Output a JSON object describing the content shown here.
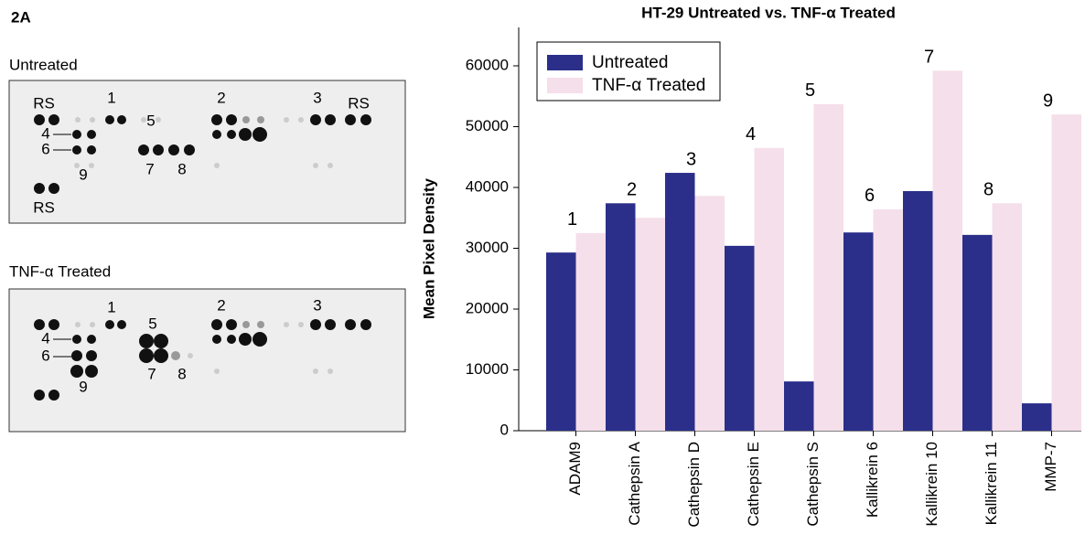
{
  "figure_label": "2A",
  "blots": [
    {
      "title": "Untreated",
      "labels": [
        "RS",
        "1",
        "5",
        "2",
        "3",
        "RS",
        "4",
        "6",
        "9",
        "7",
        "8",
        "RS"
      ]
    },
    {
      "title": "TNF-α Treated",
      "labels": [
        "1",
        "5",
        "2",
        "3",
        "4",
        "6",
        "9",
        "7",
        "8"
      ]
    }
  ],
  "chart_data": {
    "type": "bar",
    "title": "HT-29 Untreated vs. TNF-α Treated",
    "y_label": "Mean Pixel Density",
    "categories": [
      "ADAM9",
      "Cathepsin A",
      "Cathepsin D",
      "Cathepsin E",
      "Cathepsin S",
      "Kallikrein 6",
      "Kallikrein 10",
      "Kallikrein 11",
      "MMP-7"
    ],
    "series": [
      {
        "name": "Untreated",
        "color": "#2b2f8a",
        "values": [
          29300,
          37400,
          42400,
          30400,
          8100,
          32600,
          39400,
          32200,
          4500
        ]
      },
      {
        "name": "TNF-α Treated",
        "color": "#f5dfea",
        "values": [
          32500,
          35000,
          38600,
          46500,
          53700,
          36400,
          59200,
          37400,
          52000
        ]
      }
    ],
    "annotations": [
      "1",
      "2",
      "3",
      "4",
      "5",
      "6",
      "7",
      "8",
      "9"
    ],
    "ylim": [
      0,
      65000
    ],
    "yticks": [
      0,
      10000,
      20000,
      30000,
      40000,
      50000,
      60000
    ],
    "legend": "upper left",
    "grid": false
  }
}
